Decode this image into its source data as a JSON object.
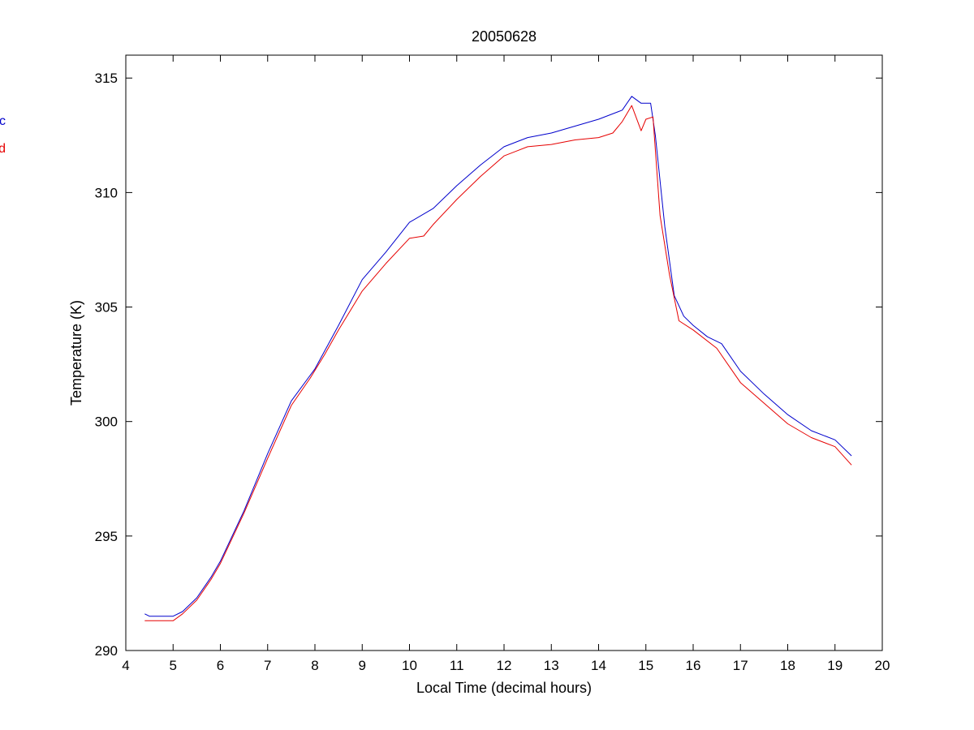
{
  "chart_data": {
    "type": "line",
    "title": "20050628",
    "xlabel": "Local Time (decimal hours)",
    "ylabel": "Temperature (K)",
    "xlim": [
      4,
      20
    ],
    "ylim": [
      290,
      316
    ],
    "xticks": [
      4,
      5,
      6,
      7,
      8,
      9,
      10,
      11,
      12,
      13,
      14,
      15,
      16,
      17,
      18,
      19,
      20
    ],
    "yticks": [
      290,
      295,
      300,
      305,
      310,
      315
    ],
    "grid": false,
    "legend": {
      "placement": "left-outside",
      "entries": [
        {
          "label": "c",
          "color": "#0000cc"
        },
        {
          "label": "d",
          "color": "#e60000"
        }
      ]
    },
    "series": [
      {
        "color": "#0000cc",
        "x": [
          4.4,
          4.5,
          5.0,
          5.2,
          5.5,
          5.8,
          6.0,
          6.5,
          7.0,
          7.5,
          8.0,
          8.5,
          9.0,
          9.5,
          10.0,
          10.5,
          11.0,
          11.5,
          12.0,
          12.5,
          13.0,
          13.5,
          14.0,
          14.5,
          14.7,
          14.9,
          15.1,
          15.2,
          15.4,
          15.6,
          15.8,
          16.0,
          16.3,
          16.6,
          17.0,
          17.5,
          18.0,
          18.5,
          19.0,
          19.35
        ],
        "y": [
          291.6,
          291.5,
          291.5,
          291.7,
          292.3,
          293.2,
          293.9,
          296.1,
          298.6,
          300.9,
          302.3,
          304.2,
          306.2,
          307.4,
          308.7,
          309.3,
          310.3,
          311.2,
          312.0,
          312.4,
          312.6,
          312.9,
          313.2,
          313.6,
          314.2,
          313.9,
          313.9,
          312.5,
          308.5,
          305.5,
          304.6,
          304.2,
          303.7,
          303.4,
          302.2,
          301.2,
          300.3,
          299.6,
          299.2,
          298.5
        ]
      },
      {
        "color": "#e60000",
        "x": [
          4.4,
          5.0,
          5.2,
          5.5,
          5.8,
          6.0,
          6.5,
          7.0,
          7.5,
          7.9,
          8.2,
          8.5,
          9.0,
          9.5,
          10.0,
          10.3,
          10.5,
          11.0,
          11.5,
          12.0,
          12.5,
          13.0,
          13.5,
          14.0,
          14.3,
          14.5,
          14.7,
          14.9,
          15.0,
          15.15,
          15.3,
          15.5,
          15.7,
          16.0,
          16.5,
          17.0,
          17.5,
          18.0,
          18.5,
          19.0,
          19.35
        ],
        "y": [
          291.3,
          291.3,
          291.6,
          292.2,
          293.1,
          293.8,
          296.0,
          298.4,
          300.7,
          301.9,
          302.9,
          304.0,
          305.7,
          306.9,
          308.0,
          308.1,
          308.6,
          309.7,
          310.7,
          311.6,
          312.0,
          312.1,
          312.3,
          312.4,
          312.6,
          313.1,
          313.8,
          312.7,
          313.2,
          313.3,
          309.0,
          306.4,
          304.4,
          304.0,
          303.2,
          301.7,
          300.8,
          299.9,
          299.3,
          298.9,
          298.1
        ]
      }
    ]
  }
}
